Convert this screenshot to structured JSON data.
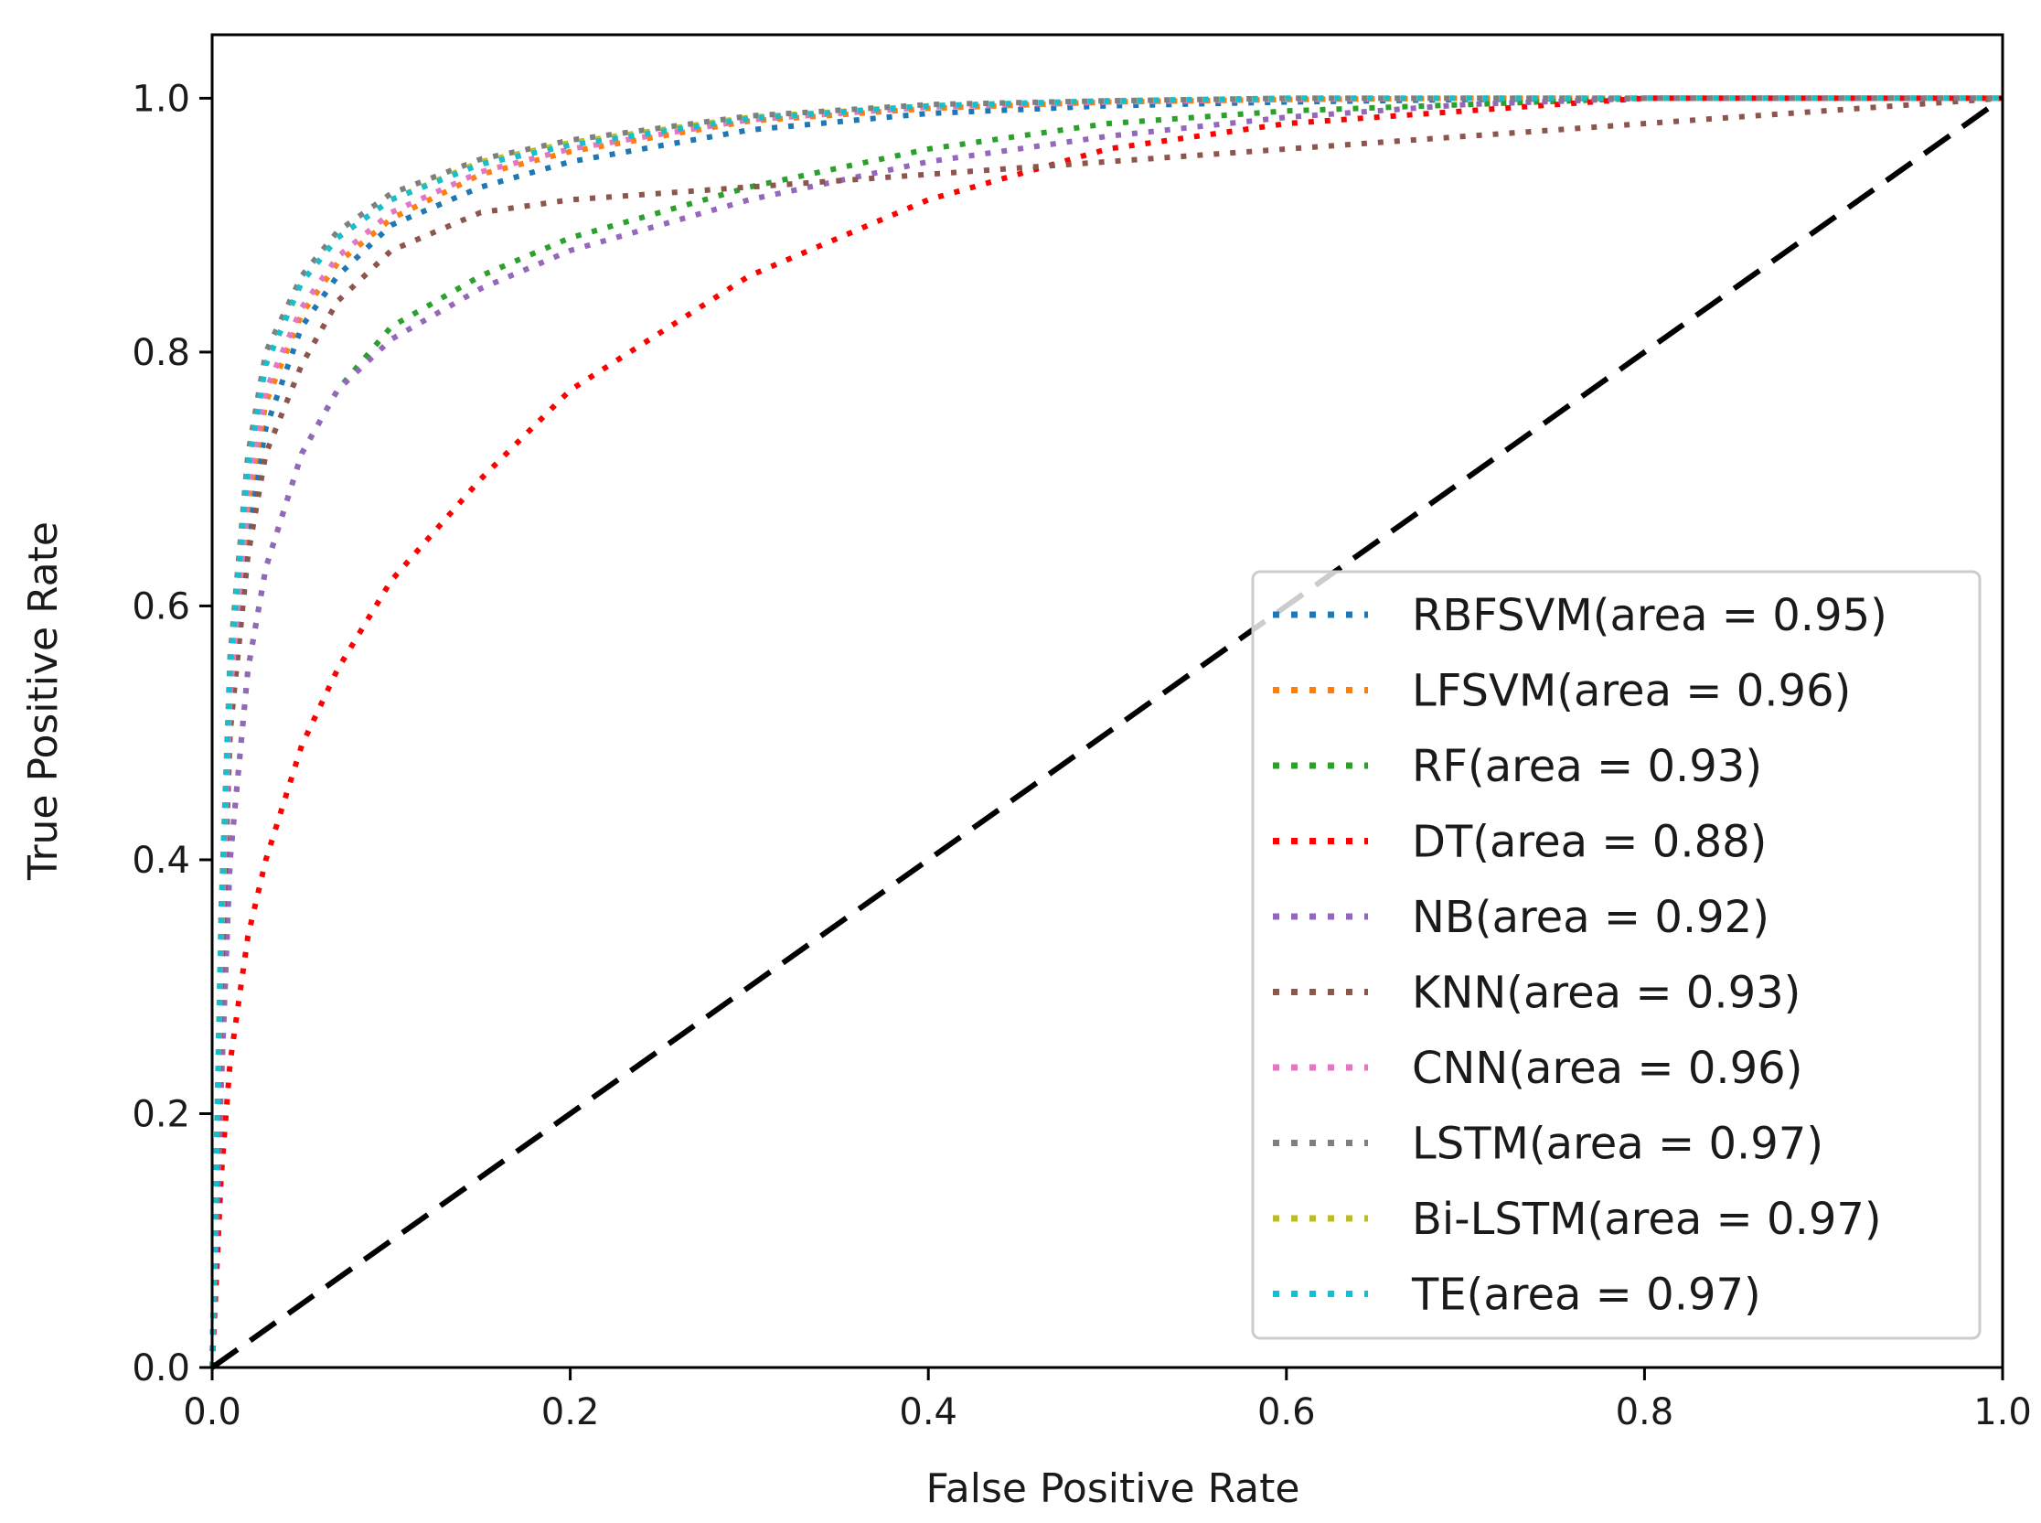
{
  "chart_data": {
    "type": "line",
    "title": "",
    "xlabel": "False Positive Rate",
    "ylabel": "True Positive Rate",
    "xlim": [
      0.0,
      1.0
    ],
    "ylim": [
      0.0,
      1.05
    ],
    "x_ticks": [
      "0.0",
      "0.2",
      "0.4",
      "0.6",
      "0.8",
      "1.0"
    ],
    "y_ticks": [
      "0.0",
      "0.2",
      "0.4",
      "0.6",
      "0.8",
      "1.0"
    ],
    "grid": false,
    "legend_position": "lower-right",
    "reference_line": {
      "name": "chance",
      "x": [
        0,
        1
      ],
      "y": [
        0,
        1
      ],
      "color": "#000000",
      "style": "dashed"
    },
    "series": [
      {
        "name": "RBFSVM(area = 0.95)",
        "color": "#1f77b4",
        "x": [
          0,
          0.005,
          0.01,
          0.02,
          0.03,
          0.05,
          0.07,
          0.1,
          0.15,
          0.2,
          0.3,
          0.4,
          0.5,
          0.6,
          0.7,
          0.8,
          0.9,
          1.0
        ],
        "y": [
          0,
          0.3,
          0.5,
          0.66,
          0.74,
          0.82,
          0.86,
          0.9,
          0.93,
          0.95,
          0.975,
          0.988,
          0.994,
          0.997,
          0.999,
          1.0,
          1.0,
          1.0
        ]
      },
      {
        "name": "LFSVM(area = 0.96)",
        "color": "#ff7f0e",
        "x": [
          0,
          0.005,
          0.01,
          0.02,
          0.03,
          0.05,
          0.07,
          0.1,
          0.15,
          0.2,
          0.3,
          0.4,
          0.5,
          0.6,
          0.7,
          0.8,
          0.9,
          1.0
        ],
        "y": [
          0,
          0.32,
          0.52,
          0.68,
          0.76,
          0.83,
          0.87,
          0.905,
          0.94,
          0.958,
          0.982,
          0.992,
          0.997,
          0.999,
          1.0,
          1.0,
          1.0,
          1.0
        ]
      },
      {
        "name": "RF(area = 0.93)",
        "color": "#2ca02c",
        "x": [
          0,
          0.005,
          0.01,
          0.02,
          0.03,
          0.05,
          0.07,
          0.1,
          0.15,
          0.2,
          0.3,
          0.4,
          0.5,
          0.6,
          0.7,
          0.8,
          0.9,
          1.0
        ],
        "y": [
          0,
          0.22,
          0.4,
          0.55,
          0.63,
          0.72,
          0.77,
          0.82,
          0.86,
          0.89,
          0.93,
          0.96,
          0.98,
          0.99,
          0.995,
          1.0,
          1.0,
          1.0
        ]
      },
      {
        "name": "DT(area = 0.88)",
        "color": "#ff0000",
        "x": [
          0,
          0.005,
          0.01,
          0.02,
          0.03,
          0.05,
          0.07,
          0.1,
          0.15,
          0.2,
          0.3,
          0.4,
          0.5,
          0.6,
          0.7,
          0.8,
          0.9,
          1.0
        ],
        "y": [
          0,
          0.15,
          0.24,
          0.34,
          0.4,
          0.49,
          0.55,
          0.62,
          0.7,
          0.77,
          0.86,
          0.92,
          0.96,
          0.98,
          0.99,
          1.0,
          1.0,
          1.0
        ]
      },
      {
        "name": "NB(area = 0.92)",
        "color": "#9467bd",
        "x": [
          0,
          0.005,
          0.01,
          0.02,
          0.03,
          0.05,
          0.07,
          0.1,
          0.15,
          0.2,
          0.3,
          0.4,
          0.5,
          0.6,
          0.7,
          0.8,
          0.9,
          1.0
        ],
        "y": [
          0,
          0.22,
          0.4,
          0.55,
          0.63,
          0.72,
          0.77,
          0.81,
          0.85,
          0.88,
          0.92,
          0.95,
          0.97,
          0.985,
          0.995,
          1.0,
          1.0,
          1.0
        ]
      },
      {
        "name": "KNN(area = 0.93)",
        "color": "#8c564b",
        "x": [
          0,
          0.005,
          0.01,
          0.02,
          0.03,
          0.05,
          0.07,
          0.1,
          0.15,
          0.2,
          0.3,
          0.4,
          0.5,
          0.6,
          0.7,
          0.8,
          0.9,
          1.0
        ],
        "y": [
          0,
          0.3,
          0.5,
          0.64,
          0.72,
          0.79,
          0.84,
          0.88,
          0.91,
          0.92,
          0.93,
          0.94,
          0.95,
          0.96,
          0.97,
          0.98,
          0.99,
          1.0
        ]
      },
      {
        "name": "CNN(area = 0.96)",
        "color": "#e377c2",
        "x": [
          0,
          0.005,
          0.01,
          0.02,
          0.03,
          0.05,
          0.07,
          0.1,
          0.15,
          0.2,
          0.3,
          0.4,
          0.5,
          0.6,
          0.7,
          0.8,
          0.9,
          1.0
        ],
        "y": [
          0,
          0.33,
          0.53,
          0.69,
          0.77,
          0.835,
          0.875,
          0.91,
          0.942,
          0.96,
          0.983,
          0.993,
          0.997,
          0.999,
          1.0,
          1.0,
          1.0,
          1.0
        ]
      },
      {
        "name": "LSTM(area = 0.97)",
        "color": "#7f7f7f",
        "x": [
          0,
          0.005,
          0.01,
          0.02,
          0.03,
          0.05,
          0.07,
          0.1,
          0.15,
          0.2,
          0.3,
          0.4,
          0.5,
          0.6,
          0.7,
          0.8,
          0.9,
          1.0
        ],
        "y": [
          0,
          0.36,
          0.56,
          0.72,
          0.8,
          0.86,
          0.895,
          0.925,
          0.952,
          0.967,
          0.986,
          0.995,
          0.998,
          1.0,
          1.0,
          1.0,
          1.0,
          1.0
        ]
      },
      {
        "name": "Bi-LSTM(area = 0.97)",
        "color": "#bcbd22",
        "x": [
          0,
          0.005,
          0.01,
          0.02,
          0.03,
          0.05,
          0.07,
          0.1,
          0.15,
          0.2,
          0.3,
          0.4,
          0.5,
          0.6,
          0.7,
          0.8,
          0.9,
          1.0
        ],
        "y": [
          0,
          0.35,
          0.55,
          0.71,
          0.79,
          0.855,
          0.89,
          0.92,
          0.95,
          0.965,
          0.985,
          0.994,
          0.998,
          1.0,
          1.0,
          1.0,
          1.0,
          1.0
        ]
      },
      {
        "name": "TE(area = 0.97)",
        "color": "#17becf",
        "x": [
          0,
          0.005,
          0.01,
          0.02,
          0.03,
          0.05,
          0.07,
          0.1,
          0.15,
          0.2,
          0.3,
          0.4,
          0.5,
          0.6,
          0.7,
          0.8,
          0.9,
          1.0
        ],
        "y": [
          0,
          0.35,
          0.55,
          0.71,
          0.79,
          0.855,
          0.89,
          0.92,
          0.948,
          0.963,
          0.984,
          0.994,
          0.998,
          1.0,
          1.0,
          1.0,
          1.0,
          1.0
        ]
      }
    ]
  }
}
